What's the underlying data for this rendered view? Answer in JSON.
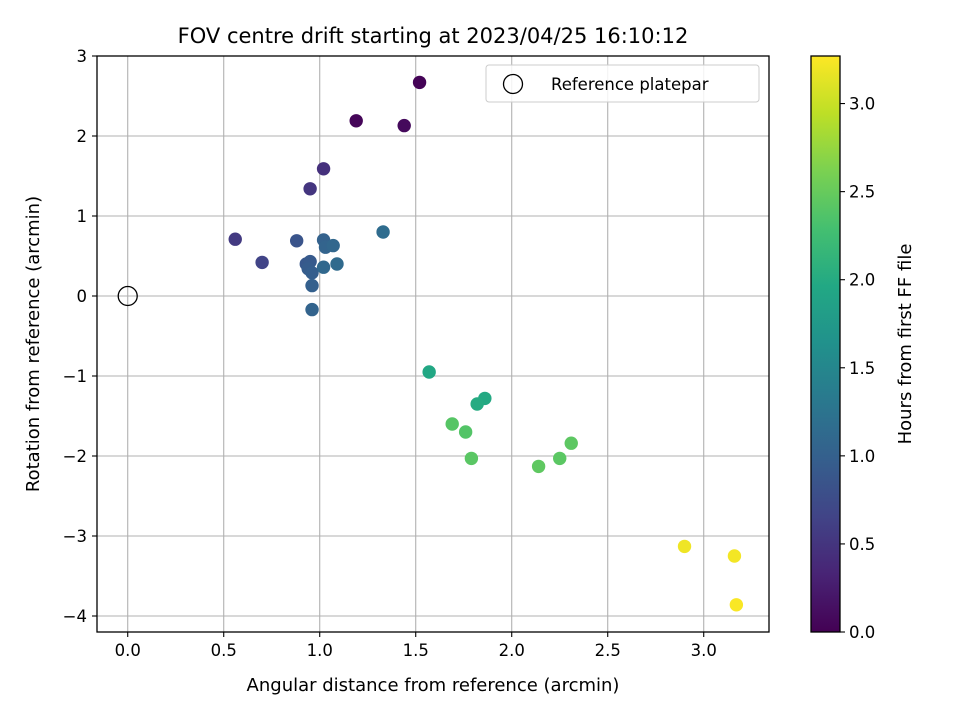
{
  "chart_data": {
    "type": "scatter",
    "title": "FOV centre drift starting at 2023/04/25 16:10:12",
    "xlabel": "Angular distance from reference (arcmin)",
    "ylabel": "Rotation from reference (arcmin)",
    "xlim": [
      -0.16,
      3.34
    ],
    "ylim": [
      -4.2,
      3.0
    ],
    "xticks": [
      0.0,
      0.5,
      1.0,
      1.5,
      2.0,
      2.5,
      3.0
    ],
    "xtick_labels": [
      "0.0",
      "0.5",
      "1.0",
      "1.5",
      "2.0",
      "2.5",
      "3.0"
    ],
    "yticks": [
      3,
      2,
      1,
      0,
      -1,
      -2,
      -3,
      -4
    ],
    "ytick_labels": [
      "3",
      "2",
      "1",
      "0",
      "−1",
      "−2",
      "−3",
      "−4"
    ],
    "grid": true,
    "legend": {
      "placement": "top-right",
      "entries": [
        {
          "label": "Reference platepar",
          "marker": "open-circle"
        }
      ]
    },
    "reference_point": {
      "x": 0.0,
      "y": 0.0
    },
    "colorbar": {
      "label": "Hours from first FF file",
      "range": [
        0.0,
        3.27
      ],
      "ticks": [
        0.0,
        0.5,
        1.0,
        1.5,
        2.0,
        2.5,
        3.0
      ],
      "tick_labels": [
        "0.0",
        "0.5",
        "1.0",
        "1.5",
        "2.0",
        "2.5",
        "3.0"
      ],
      "colormap": "viridis"
    },
    "points": [
      {
        "x": 1.52,
        "y": 2.67,
        "c": 0.02
      },
      {
        "x": 1.19,
        "y": 2.19,
        "c": 0.05
      },
      {
        "x": 1.44,
        "y": 2.13,
        "c": 0.08
      },
      {
        "x": 1.02,
        "y": 1.59,
        "c": 0.45
      },
      {
        "x": 0.95,
        "y": 1.34,
        "c": 0.5
      },
      {
        "x": 0.56,
        "y": 0.71,
        "c": 0.55
      },
      {
        "x": 0.7,
        "y": 0.42,
        "c": 0.65
      },
      {
        "x": 0.88,
        "y": 0.69,
        "c": 0.85
      },
      {
        "x": 0.93,
        "y": 0.4,
        "c": 0.9
      },
      {
        "x": 0.95,
        "y": 0.43,
        "c": 0.92
      },
      {
        "x": 0.94,
        "y": 0.34,
        "c": 0.95
      },
      {
        "x": 0.96,
        "y": 0.29,
        "c": 0.97
      },
      {
        "x": 0.96,
        "y": 0.13,
        "c": 1.0
      },
      {
        "x": 0.96,
        "y": -0.17,
        "c": 1.05
      },
      {
        "x": 1.02,
        "y": 0.7,
        "c": 1.02
      },
      {
        "x": 1.03,
        "y": 0.61,
        "c": 1.05
      },
      {
        "x": 1.07,
        "y": 0.63,
        "c": 1.08
      },
      {
        "x": 1.02,
        "y": 0.36,
        "c": 1.1
      },
      {
        "x": 1.09,
        "y": 0.4,
        "c": 1.12
      },
      {
        "x": 1.33,
        "y": 0.8,
        "c": 1.15
      },
      {
        "x": 1.57,
        "y": -0.95,
        "c": 1.95
      },
      {
        "x": 1.86,
        "y": -1.28,
        "c": 1.98
      },
      {
        "x": 1.82,
        "y": -1.35,
        "c": 2.0
      },
      {
        "x": 1.69,
        "y": -1.6,
        "c": 2.4
      },
      {
        "x": 1.76,
        "y": -1.7,
        "c": 2.38
      },
      {
        "x": 1.79,
        "y": -2.03,
        "c": 2.42
      },
      {
        "x": 2.14,
        "y": -2.13,
        "c": 2.45
      },
      {
        "x": 2.25,
        "y": -2.03,
        "c": 2.43
      },
      {
        "x": 2.31,
        "y": -1.84,
        "c": 2.44
      },
      {
        "x": 2.9,
        "y": -3.13,
        "c": 3.2
      },
      {
        "x": 3.16,
        "y": -3.25,
        "c": 3.22
      },
      {
        "x": 3.17,
        "y": -3.86,
        "c": 3.25
      }
    ]
  }
}
